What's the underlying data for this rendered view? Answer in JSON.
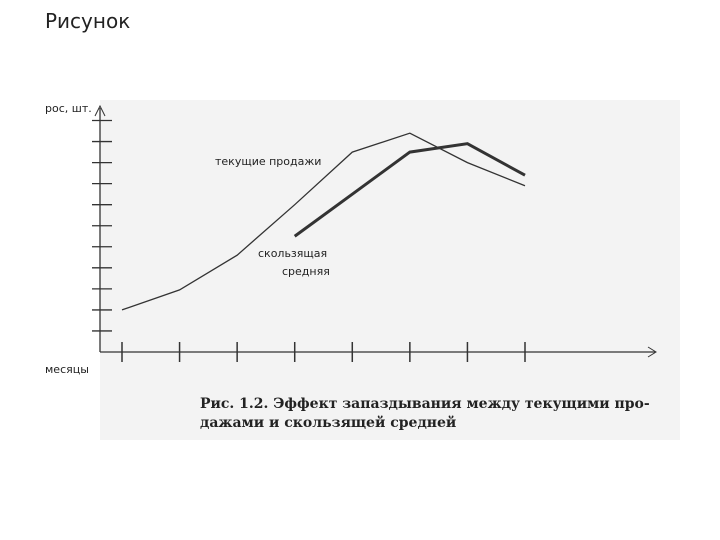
{
  "chart_data": {
    "type": "line",
    "title": "Рисунок",
    "y_label": "рос, шт.",
    "x_label": "месяцы",
    "annotations": [
      "текущие продажи",
      "скользящая",
      "средняя"
    ],
    "caption": [
      "Рис. 1.2. Эффект запаздывания между текущими про-",
      "дажами и скользящей средней"
    ],
    "categories": [
      null,
      null,
      null,
      null,
      null,
      null,
      null,
      null
    ],
    "series": [
      {
        "color": "#333333",
        "width": 1.3,
        "values": [
          2.0,
          2.95,
          4.6,
          7.0,
          9.5,
          10.4,
          9.0,
          7.9
        ]
      },
      {
        "color": "#333333",
        "width": 3,
        "values": [
          null,
          null,
          null,
          5.5,
          7.5,
          9.5,
          9.9,
          8.4
        ]
      }
    ],
    "ylim": [
      0,
      11.5
    ],
    "yticks": [
      1,
      2,
      3,
      4,
      5,
      6,
      7,
      8,
      9,
      10,
      11
    ]
  }
}
